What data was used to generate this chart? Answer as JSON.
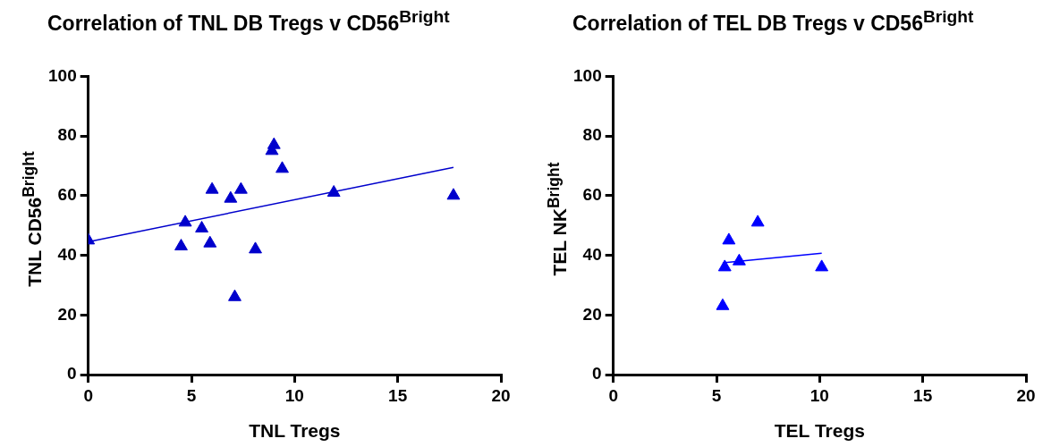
{
  "chart_data": [
    {
      "type": "scatter",
      "title": "Correlation of TNL DB Tregs v CD56$^{Bright}$",
      "xlabel": "TNL Tregs",
      "ylabel": "TNL CD56$^{Bright}$",
      "xlim": [
        0,
        20
      ],
      "xticks": [
        0,
        5,
        10,
        15,
        20
      ],
      "ylim": [
        0,
        100
      ],
      "yticks": [
        0,
        20,
        40,
        60,
        80,
        100
      ],
      "marker": "triangle",
      "series": [
        {
          "color": "#0000cc",
          "x": [
            0,
            4.5,
            4.7,
            5.5,
            5.9,
            6.0,
            6.9,
            7.1,
            7.4,
            8.1,
            8.9,
            9.0,
            9.4,
            11.9,
            17.7
          ],
          "values": [
            45,
            43,
            51,
            49,
            44,
            62,
            59,
            26,
            62,
            42,
            75,
            77,
            69,
            61,
            60
          ]
        },
        {
          "type": "line",
          "color": "#0000cc",
          "marker": "none",
          "x": [
            0,
            17.7
          ],
          "values": [
            44.5,
            69.5
          ]
        }
      ]
    },
    {
      "type": "scatter",
      "title": "Correlation of TEL DB Tregs v CD56$^{Bright}$",
      "xlabel": "TEL Tregs",
      "ylabel": "TEL NK$^{Bright}$",
      "xlim": [
        0,
        20
      ],
      "xticks": [
        0,
        5,
        10,
        15,
        20
      ],
      "ylim": [
        0,
        100
      ],
      "yticks": [
        0,
        20,
        40,
        60,
        80,
        100
      ],
      "marker": "triangle",
      "series": [
        {
          "color": "#0000ff",
          "x": [
            5.3,
            5.4,
            5.6,
            6.1,
            7.0,
            10.1
          ],
          "values": [
            23,
            36,
            45,
            38,
            51,
            36
          ]
        },
        {
          "type": "line",
          "color": "#0000ff",
          "marker": "none",
          "x": [
            5.3,
            10.1
          ],
          "values": [
            37.5,
            40.7
          ]
        }
      ]
    }
  ]
}
